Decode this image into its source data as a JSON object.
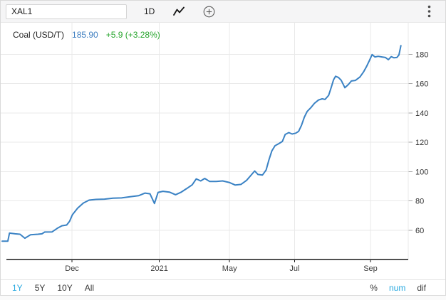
{
  "toolbar": {
    "symbol_value": "XAL1",
    "interval_label": "1D",
    "icons": {
      "chart_type": "line-chart-icon",
      "add": "plus-circle-icon",
      "menu": "kebab-menu-icon"
    }
  },
  "legend": {
    "instrument": "Coal (USD/T)",
    "price": "185.90",
    "change": "+5.9 (+3.28%)"
  },
  "colors": {
    "line": "#3a82c4",
    "price_text": "#3f7fc1",
    "change_text": "#27a52d",
    "accent_blue": "#29a9e0",
    "toolbar_bg": "#f5f5f6",
    "gridline": "#e9e9e9",
    "axis": "#1a1a1a"
  },
  "chart_data": {
    "type": "line",
    "title": "Coal (USD/T)",
    "xlabel": "",
    "ylabel": "",
    "ylim": [
      40,
      202
    ],
    "yticks": [
      60,
      80,
      100,
      120,
      140,
      160,
      180
    ],
    "grid": true,
    "legend_position": "top-left",
    "line_color": "#3a82c4",
    "xticks": [
      {
        "label": "Dec",
        "t": 0.172
      },
      {
        "label": "2021",
        "t": 0.387
      },
      {
        "label": "May",
        "t": 0.56
      },
      {
        "label": "Jul",
        "t": 0.72
      },
      {
        "label": "Sep",
        "t": 0.907
      }
    ],
    "points": [
      [
        0.0,
        52.5
      ],
      [
        0.014,
        52.5
      ],
      [
        0.018,
        58.0
      ],
      [
        0.032,
        57.5
      ],
      [
        0.044,
        57.2
      ],
      [
        0.056,
        54.5
      ],
      [
        0.07,
        56.9
      ],
      [
        0.088,
        57.2
      ],
      [
        0.098,
        57.5
      ],
      [
        0.105,
        58.7
      ],
      [
        0.123,
        58.8
      ],
      [
        0.137,
        61.5
      ],
      [
        0.147,
        63.0
      ],
      [
        0.159,
        63.5
      ],
      [
        0.166,
        66.0
      ],
      [
        0.173,
        70.5
      ],
      [
        0.186,
        75.0
      ],
      [
        0.2,
        78.5
      ],
      [
        0.214,
        80.5
      ],
      [
        0.231,
        81.0
      ],
      [
        0.252,
        81.2
      ],
      [
        0.273,
        81.8
      ],
      [
        0.294,
        82.0
      ],
      [
        0.315,
        82.8
      ],
      [
        0.336,
        83.5
      ],
      [
        0.352,
        85.3
      ],
      [
        0.364,
        84.8
      ],
      [
        0.375,
        78.2
      ],
      [
        0.384,
        85.8
      ],
      [
        0.396,
        86.5
      ],
      [
        0.412,
        86.0
      ],
      [
        0.427,
        84.2
      ],
      [
        0.44,
        85.8
      ],
      [
        0.454,
        88.3
      ],
      [
        0.468,
        91.0
      ],
      [
        0.478,
        95.0
      ],
      [
        0.489,
        93.6
      ],
      [
        0.499,
        95.3
      ],
      [
        0.511,
        93.2
      ],
      [
        0.527,
        93.2
      ],
      [
        0.543,
        93.6
      ],
      [
        0.559,
        92.6
      ],
      [
        0.574,
        90.8
      ],
      [
        0.588,
        91.2
      ],
      [
        0.602,
        94.0
      ],
      [
        0.615,
        98.2
      ],
      [
        0.622,
        100.4
      ],
      [
        0.63,
        98.0
      ],
      [
        0.641,
        97.6
      ],
      [
        0.65,
        101.0
      ],
      [
        0.657,
        108.0
      ],
      [
        0.664,
        114.0
      ],
      [
        0.672,
        117.6
      ],
      [
        0.681,
        119.0
      ],
      [
        0.69,
        120.5
      ],
      [
        0.697,
        125.3
      ],
      [
        0.706,
        126.6
      ],
      [
        0.714,
        125.6
      ],
      [
        0.723,
        126.2
      ],
      [
        0.73,
        127.4
      ],
      [
        0.737,
        131.5
      ],
      [
        0.744,
        137.0
      ],
      [
        0.751,
        141.0
      ],
      [
        0.76,
        143.5
      ],
      [
        0.769,
        146.5
      ],
      [
        0.779,
        148.8
      ],
      [
        0.788,
        149.6
      ],
      [
        0.795,
        149.2
      ],
      [
        0.804,
        152.0
      ],
      [
        0.811,
        158.0
      ],
      [
        0.816,
        162.5
      ],
      [
        0.821,
        165.0
      ],
      [
        0.828,
        164.2
      ],
      [
        0.835,
        162.3
      ],
      [
        0.844,
        157.2
      ],
      [
        0.853,
        159.5
      ],
      [
        0.86,
        161.8
      ],
      [
        0.87,
        162.2
      ],
      [
        0.881,
        164.5
      ],
      [
        0.89,
        168.0
      ],
      [
        0.897,
        171.5
      ],
      [
        0.904,
        175.5
      ],
      [
        0.911,
        179.8
      ],
      [
        0.918,
        178.2
      ],
      [
        0.926,
        178.6
      ],
      [
        0.935,
        178.2
      ],
      [
        0.944,
        177.8
      ],
      [
        0.951,
        176.3
      ],
      [
        0.958,
        178.4
      ],
      [
        0.965,
        177.6
      ],
      [
        0.972,
        177.8
      ],
      [
        0.977,
        179.5
      ],
      [
        0.982,
        185.9
      ]
    ]
  },
  "footer": {
    "ranges": [
      {
        "label": "1Y",
        "active": true
      },
      {
        "label": "5Y",
        "active": false
      },
      {
        "label": "10Y",
        "active": false
      },
      {
        "label": "All",
        "active": false
      }
    ],
    "modes": [
      {
        "label": "%",
        "active": false
      },
      {
        "label": "num",
        "active": true
      },
      {
        "label": "dif",
        "active": false
      }
    ]
  }
}
